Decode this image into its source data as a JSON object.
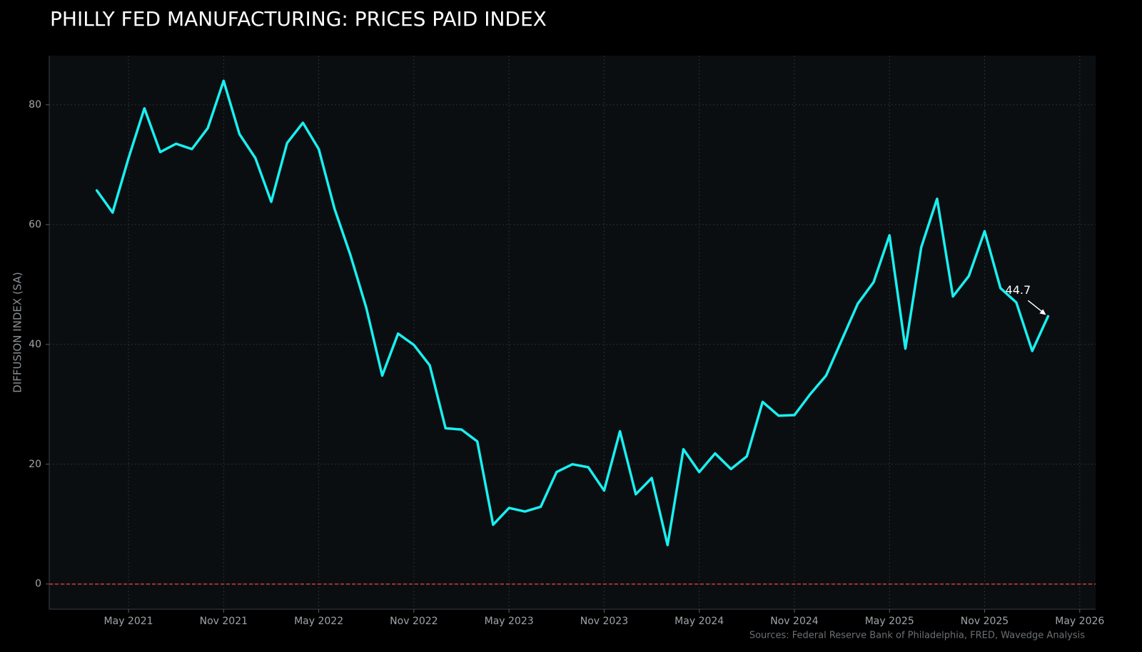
{
  "chart_data": {
    "type": "line",
    "title": "PHILLY FED MANUFACTURING: PRICES PAID INDEX",
    "y_label": "DIFFUSION INDEX (SA)",
    "source": "Sources: Federal Reserve Bank of Philadelphia, FRED, Wavedge Analysis",
    "x": [
      "2021-03",
      "2021-04",
      "2021-05",
      "2021-06",
      "2021-07",
      "2021-08",
      "2021-09",
      "2021-10",
      "2021-11",
      "2021-12",
      "2022-01",
      "2022-02",
      "2022-03",
      "2022-04",
      "2022-05",
      "2022-06",
      "2022-07",
      "2022-08",
      "2022-09",
      "2022-10",
      "2022-11",
      "2022-12",
      "2023-01",
      "2023-02",
      "2023-03",
      "2023-04",
      "2023-05",
      "2023-06",
      "2023-07",
      "2023-08",
      "2023-09",
      "2023-10",
      "2023-11",
      "2023-12",
      "2024-01",
      "2024-02",
      "2024-03",
      "2024-04",
      "2024-05",
      "2024-06",
      "2024-07",
      "2024-08",
      "2024-09",
      "2024-10",
      "2024-11",
      "2024-12",
      "2025-01",
      "2025-02",
      "2025-03",
      "2025-04",
      "2025-05",
      "2025-06",
      "2025-07",
      "2025-08",
      "2025-09",
      "2025-10",
      "2025-11",
      "2025-12",
      "2026-01",
      "2026-02",
      "2026-03"
    ],
    "series": [
      {
        "name": "Prices Paid",
        "color": "#19f0f0",
        "values": [
          65.7,
          62.0,
          71.1,
          79.4,
          72.1,
          73.5,
          72.6,
          76.1,
          84.0,
          75.1,
          71.1,
          63.8,
          73.6,
          77.0,
          72.6,
          62.6,
          54.9,
          46.1,
          34.8,
          41.8,
          39.9,
          36.5,
          26.0,
          25.8,
          23.8,
          9.9,
          12.7,
          12.1,
          12.9,
          18.7,
          20.0,
          19.5,
          15.6,
          25.5,
          15.0,
          17.7,
          6.5,
          22.5,
          18.7,
          21.8,
          19.2,
          21.3,
          30.4,
          28.1,
          28.2,
          31.7,
          34.8,
          40.8,
          46.8,
          50.4,
          58.2,
          39.3,
          56.2,
          64.3,
          48.0,
          51.4,
          58.9,
          49.4,
          47.0,
          38.9,
          44.7
        ]
      }
    ],
    "xlim": [
      "2020-12",
      "2026-06"
    ],
    "xticks": [
      {
        "value": "2021-05",
        "label": "May 2021"
      },
      {
        "value": "2021-11",
        "label": "Nov 2021"
      },
      {
        "value": "2022-05",
        "label": "May 2022"
      },
      {
        "value": "2022-11",
        "label": "Nov 2022"
      },
      {
        "value": "2023-05",
        "label": "May 2023"
      },
      {
        "value": "2023-11",
        "label": "Nov 2023"
      },
      {
        "value": "2024-05",
        "label": "May 2024"
      },
      {
        "value": "2024-11",
        "label": "Nov 2024"
      },
      {
        "value": "2025-05",
        "label": "May 2025"
      },
      {
        "value": "2025-11",
        "label": "Nov 2025"
      },
      {
        "value": "2026-05",
        "label": "May 2026"
      }
    ],
    "ylim": [
      -4.2,
      88.2
    ],
    "yticks": [
      0,
      20,
      40,
      60,
      80
    ],
    "grid": true,
    "hline": {
      "value": 0,
      "color": "#d43a3a"
    },
    "annotations": [
      {
        "text": "44.7",
        "x": "2026-03",
        "y": 44.7
      }
    ]
  }
}
